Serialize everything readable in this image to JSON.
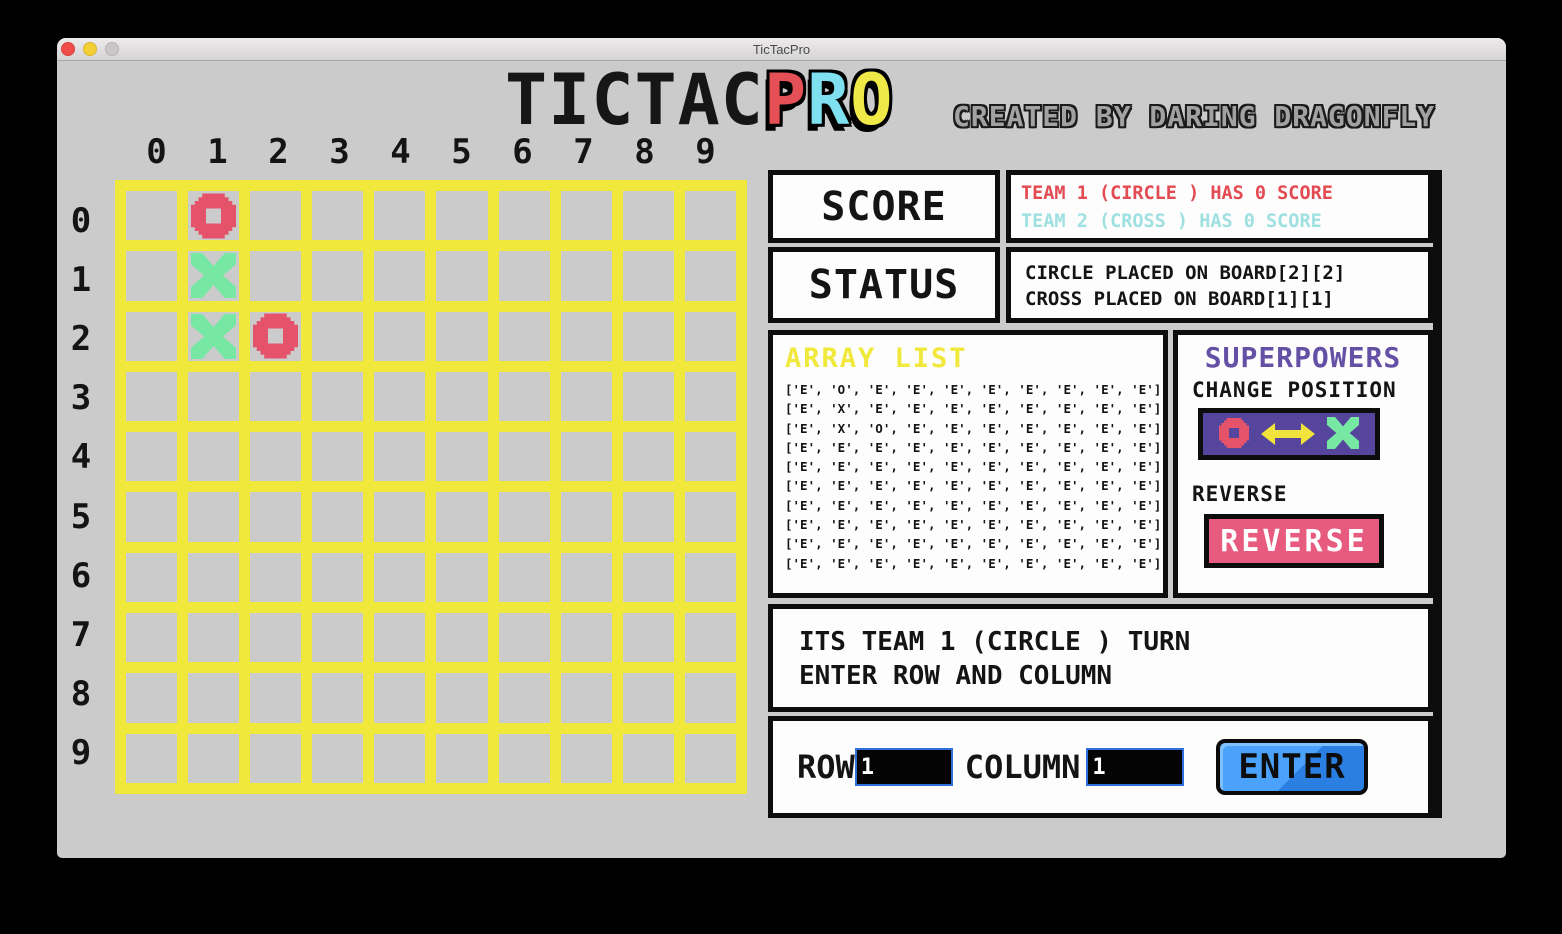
{
  "window": {
    "title": "TicTacPro"
  },
  "header": {
    "logo_letters": [
      {
        "ch": "T",
        "color": "#161616",
        "outlined": false
      },
      {
        "ch": "I",
        "color": "#161616",
        "outlined": false
      },
      {
        "ch": "C",
        "color": "#161616",
        "outlined": false
      },
      {
        "ch": "T",
        "color": "#161616",
        "outlined": false
      },
      {
        "ch": "A",
        "color": "#161616",
        "outlined": false
      },
      {
        "ch": "C",
        "color": "#161616",
        "outlined": false
      },
      {
        "ch": "P",
        "color": "#e45056",
        "outlined": true
      },
      {
        "ch": "R",
        "color": "#7fe0ef",
        "outlined": true
      },
      {
        "ch": "O",
        "color": "#f0ea48",
        "outlined": true
      }
    ],
    "credit": "CREATED BY DARING DRAGONFLY"
  },
  "board": {
    "col_headers": [
      "0",
      "1",
      "2",
      "3",
      "4",
      "5",
      "6",
      "7",
      "8",
      "9"
    ],
    "row_headers": [
      "0",
      "1",
      "2",
      "3",
      "4",
      "5",
      "6",
      "7",
      "8",
      "9"
    ],
    "cells": [
      [
        "E",
        "O",
        "E",
        "E",
        "E",
        "E",
        "E",
        "E",
        "E",
        "E"
      ],
      [
        "E",
        "X",
        "E",
        "E",
        "E",
        "E",
        "E",
        "E",
        "E",
        "E"
      ],
      [
        "E",
        "X",
        "O",
        "E",
        "E",
        "E",
        "E",
        "E",
        "E",
        "E"
      ],
      [
        "E",
        "E",
        "E",
        "E",
        "E",
        "E",
        "E",
        "E",
        "E",
        "E"
      ],
      [
        "E",
        "E",
        "E",
        "E",
        "E",
        "E",
        "E",
        "E",
        "E",
        "E"
      ],
      [
        "E",
        "E",
        "E",
        "E",
        "E",
        "E",
        "E",
        "E",
        "E",
        "E"
      ],
      [
        "E",
        "E",
        "E",
        "E",
        "E",
        "E",
        "E",
        "E",
        "E",
        "E"
      ],
      [
        "E",
        "E",
        "E",
        "E",
        "E",
        "E",
        "E",
        "E",
        "E",
        "E"
      ],
      [
        "E",
        "E",
        "E",
        "E",
        "E",
        "E",
        "E",
        "E",
        "E",
        "E"
      ],
      [
        "E",
        "E",
        "E",
        "E",
        "E",
        "E",
        "E",
        "E",
        "E",
        "E"
      ]
    ]
  },
  "score": {
    "label": "SCORE",
    "team1": "TEAM 1 (CIRCLE ) HAS 0 SCORE",
    "team2": "TEAM 2 (CROSS ) HAS 0 SCORE"
  },
  "status": {
    "label": "STATUS",
    "line1": "CIRCLE PLACED ON BOARD[2][2]",
    "line2": "CROSS PLACED ON BOARD[1][1]"
  },
  "array_list": {
    "title": "ARRAY LIST",
    "rows": [
      "['E', 'O', 'E', 'E', 'E', 'E', 'E', 'E', 'E', 'E']",
      "['E', 'X', 'E', 'E', 'E', 'E', 'E', 'E', 'E', 'E']",
      "['E', 'X', 'O', 'E', 'E', 'E', 'E', 'E', 'E', 'E']",
      "['E', 'E', 'E', 'E', 'E', 'E', 'E', 'E', 'E', 'E']",
      "['E', 'E', 'E', 'E', 'E', 'E', 'E', 'E', 'E', 'E']",
      "['E', 'E', 'E', 'E', 'E', 'E', 'E', 'E', 'E', 'E']",
      "['E', 'E', 'E', 'E', 'E', 'E', 'E', 'E', 'E', 'E']",
      "['E', 'E', 'E', 'E', 'E', 'E', 'E', 'E', 'E', 'E']",
      "['E', 'E', 'E', 'E', 'E', 'E', 'E', 'E', 'E', 'E']",
      "['E', 'E', 'E', 'E', 'E', 'E', 'E', 'E', 'E', 'E']"
    ]
  },
  "superpowers": {
    "title": "SUPERPOWERS",
    "change_label": "CHANGE POSITION",
    "reverse_label": "REVERSE",
    "reverse_button": "REVERSE"
  },
  "message": {
    "line1": "ITS TEAM 1 (CIRCLE ) TURN",
    "line2": "ENTER ROW AND COLUMN"
  },
  "inputs": {
    "row_label": "ROW",
    "row_value": "1",
    "column_label": "COLUMN",
    "column_value": "1",
    "enter_button": "ENTER"
  },
  "colors": {
    "team1_red": "#e34b52",
    "team2_cyan": "#9fe0e0",
    "grid_yellow": "#f0e93c",
    "circle_piece_red": "#e5536b",
    "cross_piece_green": "#76e8a4",
    "superpowers_purple": "#6450a4",
    "change_button_purple": "#55459c",
    "reverse_pink": "#e65b7e",
    "enter_blue": "#3d9af7",
    "input_border_blue": "#2d6fdb",
    "window_gray": "#cbcbcb"
  }
}
